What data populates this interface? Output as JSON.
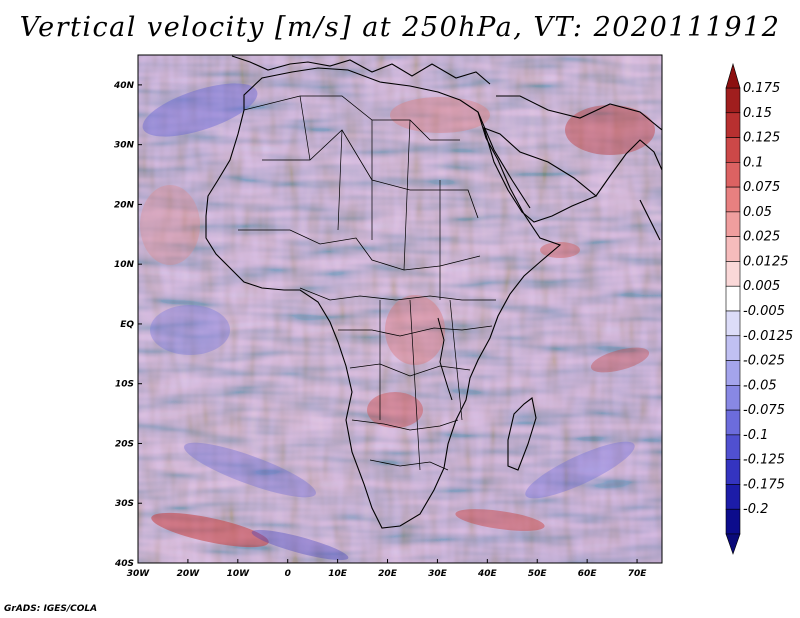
{
  "title": "Vertical velocity [m/s] at 250hPa, VT: 2020111912",
  "credit": "GrADS: IGES/COLA",
  "map": {
    "lon_range": [
      -30,
      75
    ],
    "lat_range": [
      -40,
      45
    ],
    "lat_labels": [
      "40N",
      "30N",
      "20N",
      "10N",
      "EQ",
      "10S",
      "20S",
      "30S",
      "40S"
    ],
    "lon_labels": [
      "30W",
      "20W",
      "10W",
      "0",
      "10E",
      "20E",
      "30E",
      "40E",
      "50E",
      "60E",
      "70E"
    ]
  },
  "colorbar": {
    "labels": [
      "0.175",
      "0.15",
      "0.125",
      "0.1",
      "0.075",
      "0.05",
      "0.025",
      "0.0125",
      "0.005",
      "-0.005",
      "-0.0125",
      "-0.025",
      "-0.05",
      "-0.075",
      "-0.1",
      "-0.125",
      "-0.175",
      "-0.2"
    ],
    "colors": [
      "#a01e1e",
      "#b83030",
      "#cc4848",
      "#dc6262",
      "#e88080",
      "#f09e9e",
      "#f6bcbc",
      "#fad8d8",
      "#ffffff",
      "#dcdcf8",
      "#c0c0f2",
      "#a4a4ec",
      "#8888e4",
      "#6c6cdc",
      "#5050d0",
      "#3434c0",
      "#1c1ca8",
      "#0c0c8c"
    ]
  }
}
